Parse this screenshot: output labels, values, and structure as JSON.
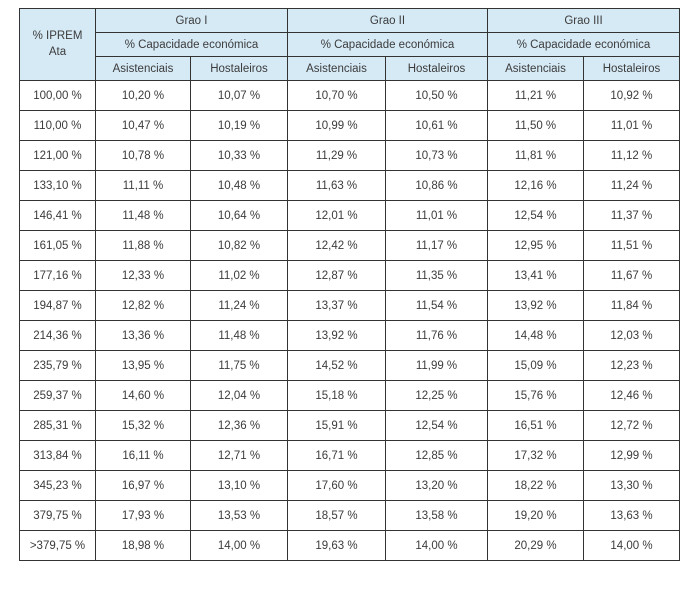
{
  "colors": {
    "header_bg": "#d6eaf6",
    "border": "#333333",
    "text": "#3b3b3b",
    "page_bg": "#ffffff"
  },
  "table": {
    "corner_header": "% IPREM\nAta",
    "groups": [
      {
        "label": "Grao I",
        "subheader": "% Capacidade económica",
        "columns": [
          "Asistenciais",
          "Hostaleiros"
        ]
      },
      {
        "label": "Grao II",
        "subheader": "% Capacidade económica",
        "columns": [
          "Asistenciais",
          "Hostaleiros"
        ]
      },
      {
        "label": "Grao III",
        "subheader": "% Capacidade económica",
        "columns": [
          "Asistenciais",
          "Hostaleiros"
        ]
      }
    ],
    "rows": [
      {
        "iprem": "100,00 %",
        "values": [
          "10,20 %",
          "10,07 %",
          "10,70 %",
          "10,50 %",
          "11,21 %",
          "10,92 %"
        ]
      },
      {
        "iprem": "110,00 %",
        "values": [
          "10,47 %",
          "10,19 %",
          "10,99 %",
          "10,61 %",
          "11,50 %",
          "11,01 %"
        ]
      },
      {
        "iprem": "121,00 %",
        "values": [
          "10,78 %",
          "10,33 %",
          "11,29 %",
          "10,73 %",
          "11,81 %",
          "11,12 %"
        ]
      },
      {
        "iprem": "133,10 %",
        "values": [
          "11,11 %",
          "10,48 %",
          "11,63 %",
          "10,86 %",
          "12,16 %",
          "11,24 %"
        ]
      },
      {
        "iprem": "146,41 %",
        "values": [
          "11,48 %",
          "10,64 %",
          "12,01 %",
          "11,01 %",
          "12,54 %",
          "11,37 %"
        ]
      },
      {
        "iprem": "161,05 %",
        "values": [
          "11,88 %",
          "10,82 %",
          "12,42 %",
          "11,17 %",
          "12,95 %",
          "11,51 %"
        ]
      },
      {
        "iprem": "177,16 %",
        "values": [
          "12,33 %",
          "11,02 %",
          "12,87 %",
          "11,35 %",
          "13,41 %",
          "11,67 %"
        ]
      },
      {
        "iprem": "194,87 %",
        "values": [
          "12,82 %",
          "11,24 %",
          "13,37 %",
          "11,54 %",
          "13,92 %",
          "11,84 %"
        ]
      },
      {
        "iprem": "214,36 %",
        "values": [
          "13,36 %",
          "11,48 %",
          "13,92 %",
          "11,76 %",
          "14,48 %",
          "12,03 %"
        ]
      },
      {
        "iprem": "235,79 %",
        "values": [
          "13,95 %",
          "11,75 %",
          "14,52 %",
          "11,99 %",
          "15,09 %",
          "12,23 %"
        ]
      },
      {
        "iprem": "259,37 %",
        "values": [
          "14,60 %",
          "12,04 %",
          "15,18 %",
          "12,25 %",
          "15,76 %",
          "12,46 %"
        ]
      },
      {
        "iprem": "285,31 %",
        "values": [
          "15,32 %",
          "12,36 %",
          "15,91 %",
          "12,54 %",
          "16,51 %",
          "12,72 %"
        ]
      },
      {
        "iprem": "313,84 %",
        "values": [
          "16,11 %",
          "12,71 %",
          "16,71 %",
          "12,85 %",
          "17,32 %",
          "12,99 %"
        ]
      },
      {
        "iprem": "345,23 %",
        "values": [
          "16,97 %",
          "13,10 %",
          "17,60 %",
          "13,20 %",
          "18,22 %",
          "13,30 %"
        ]
      },
      {
        "iprem": "379,75 %",
        "values": [
          "17,93 %",
          "13,53 %",
          "18,57 %",
          "13,58 %",
          "19,20 %",
          "13,63 %"
        ]
      },
      {
        "iprem": ">379,75 %",
        "values": [
          "18,98 %",
          "14,00 %",
          "19,63 %",
          "14,00 %",
          "20,29 %",
          "14,00 %"
        ]
      }
    ]
  }
}
